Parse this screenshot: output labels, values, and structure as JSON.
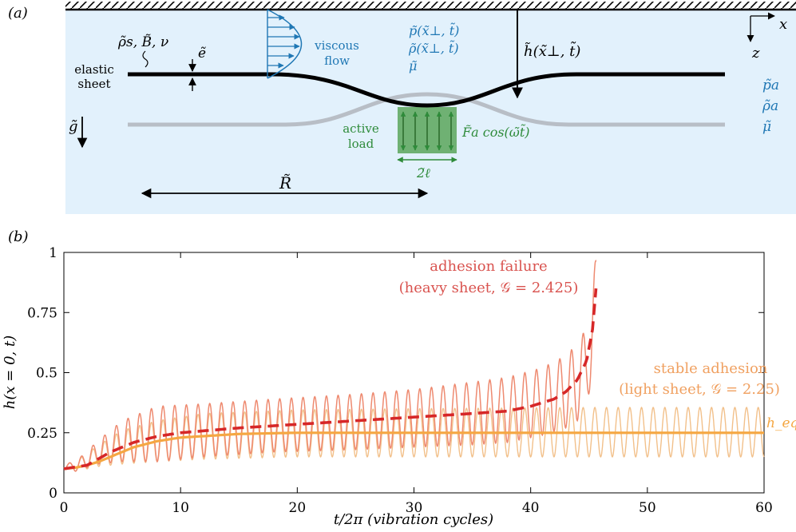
{
  "panel_a": {
    "label": "(a)",
    "axis_x": "x",
    "axis_z": "z",
    "sheet_props": "ρ̃s, B̃, ν",
    "thickness": "ẽ",
    "elastic_sheet_line1": "elastic",
    "elastic_sheet_line2": "sheet",
    "gravity": "g̃",
    "viscous_line1": "viscous",
    "viscous_line2": "flow",
    "fluid_p": "p̃(x̃⊥, t̃)",
    "fluid_rho": "ρ̃(x̃⊥, t̃)",
    "fluid_mu": "μ̃",
    "gap_height": "h̃(x̃⊥, t̃)",
    "ambient_p": "p̃a",
    "ambient_rho": "ρ̃a",
    "ambient_mu": "μ̃",
    "active_line1": "active",
    "active_line2": "load",
    "force": "F̃a cos(ω̃t̃)",
    "load_width": "2̃ℓ",
    "radius": "R̃",
    "colors": {
      "background": "#e2f1fc",
      "sheet": "#000000",
      "rest_sheet": "#b8bec6",
      "flow": "#1f77b4",
      "load": "#2e8b3a"
    }
  },
  "panel_b": {
    "label": "(b)",
    "failure_line1": "adhesion failure",
    "failure_line2": "(heavy sheet, 𝒢 = 2.425)",
    "stable_line1": "stable adhesion",
    "stable_line2": "(light sheet, 𝒢 = 2.25)",
    "heq_label": "h_eq",
    "colors": {
      "failure": "#d62728",
      "failure_osc": "#ee8a70",
      "stable": "#f5a742",
      "stable_osc": "#f2c08a"
    }
  },
  "chart_data": {
    "type": "line",
    "title": "",
    "xlabel": "t/2π (vibration cycles)",
    "ylabel": "h(x = 0, t)",
    "xlim": [
      0,
      60
    ],
    "ylim": [
      0,
      1
    ],
    "xticks": [
      0,
      10,
      20,
      30,
      40,
      50,
      60
    ],
    "xtick_labels": [
      "0",
      "10",
      "20",
      "30",
      "40",
      "50",
      "60"
    ],
    "yticks": [
      0,
      0.25,
      0.5,
      0.75,
      1
    ],
    "ytick_labels": [
      "0",
      "0.25",
      "0.5",
      "0.75",
      "1"
    ],
    "series": [
      {
        "name": "heavy sheet mean (G = 2.425)",
        "style": "dashed",
        "x": [
          0,
          2,
          4,
          6,
          8,
          10,
          15,
          20,
          25,
          30,
          35,
          38,
          40,
          42,
          43,
          44,
          44.8,
          45.3,
          45.6
        ],
        "y": [
          0.1,
          0.115,
          0.17,
          0.21,
          0.235,
          0.25,
          0.27,
          0.285,
          0.3,
          0.315,
          0.33,
          0.34,
          0.36,
          0.39,
          0.42,
          0.47,
          0.55,
          0.68,
          0.85
        ]
      },
      {
        "name": "heavy sheet oscillation",
        "style": "thin",
        "x": [
          0,
          1,
          3,
          5,
          8,
          12,
          18,
          25,
          30,
          35,
          38,
          41,
          43,
          44,
          44.7,
          45.2,
          45.6
        ],
        "y_max": [
          0.12,
          0.13,
          0.22,
          0.3,
          0.36,
          0.37,
          0.39,
          0.41,
          0.43,
          0.46,
          0.48,
          0.52,
          0.57,
          0.62,
          0.68,
          0.78,
          1.0
        ],
        "y_min": [
          0.1,
          0.09,
          0.12,
          0.13,
          0.13,
          0.15,
          0.17,
          0.18,
          0.19,
          0.2,
          0.21,
          0.24,
          0.27,
          0.3,
          0.36,
          0.45,
          0.6
        ],
        "cycles": 45.6
      },
      {
        "name": "light sheet mean (G = 2.25)",
        "style": "thick",
        "x": [
          0,
          1,
          2,
          3,
          4,
          5,
          6,
          8,
          10,
          15,
          20,
          30,
          40,
          50,
          60
        ],
        "y": [
          0.1,
          0.105,
          0.115,
          0.13,
          0.15,
          0.17,
          0.19,
          0.215,
          0.23,
          0.245,
          0.25,
          0.25,
          0.25,
          0.25,
          0.25
        ]
      },
      {
        "name": "light sheet oscillation",
        "style": "thin",
        "x": [
          0,
          1,
          3,
          5,
          8,
          12,
          20,
          30,
          45,
          60
        ],
        "y_max": [
          0.12,
          0.13,
          0.2,
          0.26,
          0.3,
          0.33,
          0.345,
          0.35,
          0.355,
          0.355
        ],
        "y_min": [
          0.1,
          0.09,
          0.11,
          0.12,
          0.13,
          0.14,
          0.15,
          0.15,
          0.15,
          0.15
        ],
        "cycles": 60
      }
    ],
    "reference_line": {
      "label": "h_eq",
      "y": 0.25
    }
  }
}
